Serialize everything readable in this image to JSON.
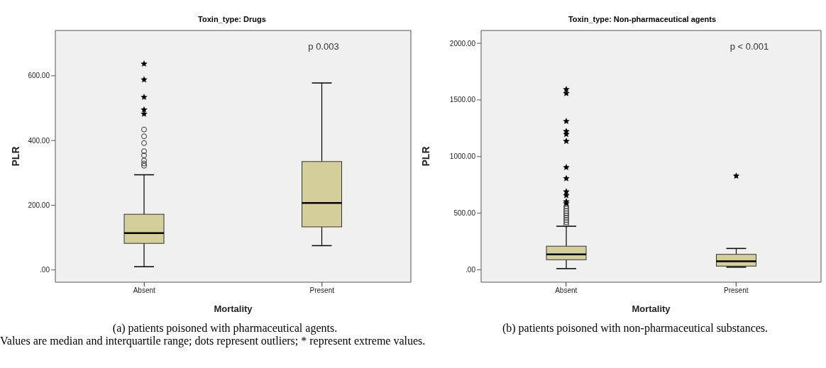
{
  "chart_data": [
    {
      "type": "box",
      "title": "Toxin_type: Drugs",
      "xlabel": "Mortality",
      "ylabel": "PLR",
      "categories": [
        "Absent",
        "Present"
      ],
      "ylim": [
        -38,
        740
      ],
      "yticks": [
        {
          "value": 0,
          "label": ".00"
        },
        {
          "value": 200,
          "label": "200.00"
        },
        {
          "value": 400,
          "label": "400.00"
        },
        {
          "value": 600,
          "label": "600.00"
        }
      ],
      "series": [
        {
          "color": "#d4cf9a",
          "boxes": [
            {
              "low": 10,
              "q1": 82,
              "median": 114,
              "q3": 172,
              "high": 294,
              "outliers": [
                322,
                329,
                338,
                354,
                367,
                392,
                413,
                434
              ]
            },
            {
              "low": 75,
              "q1": 133,
              "median": 207,
              "q3": 335,
              "high": 578
            }
          ]
        },
        {
          "type": "scatter",
          "marker": "star",
          "color": "#000000",
          "x": [
            "Absent",
            "Absent",
            "Absent",
            "Absent",
            "Absent"
          ],
          "values": [
            482,
            495,
            534,
            588,
            637
          ]
        }
      ],
      "annotations": [
        "p 0.003",
        "(a) patients poisoned with pharmaceutical agents.",
        "Values are median and interquartile range; dots represent outliers; * represent extreme values."
      ]
    },
    {
      "type": "box",
      "title": "Toxin_type: Non-pharmaceutical agents",
      "xlabel": "Mortality",
      "ylabel": "PLR",
      "categories": [
        "Absent",
        "Present"
      ],
      "ylim": [
        -109,
        2113
      ],
      "yticks": [
        {
          "value": 0,
          "label": ".00"
        },
        {
          "value": 500,
          "label": "500.00"
        },
        {
          "value": 1000,
          "label": "1000.00"
        },
        {
          "value": 1500,
          "label": "1500.00"
        },
        {
          "value": 2000,
          "label": "2000.00"
        }
      ],
      "series": [
        {
          "color": "#d4cf9a",
          "boxes": [
            {
              "low": 11,
              "q1": 89,
              "median": 137,
              "q3": 209,
              "high": 385,
              "outliers": [
                400,
                420,
                440,
                460,
                480,
                500,
                520,
                540,
                560
              ]
            },
            {
              "low": 24,
              "q1": 33,
              "median": 76,
              "q3": 137,
              "high": 189
            }
          ]
        },
        {
          "type": "scatter",
          "marker": "star",
          "color": "#000000",
          "x": [
            "Absent",
            "Absent",
            "Absent",
            "Absent",
            "Absent",
            "Absent",
            "Absent",
            "Absent",
            "Absent",
            "Absent",
            "Absent",
            "Absent",
            "Present"
          ],
          "values": [
            585,
            603,
            657,
            690,
            807,
            905,
            1136,
            1197,
            1223,
            1312,
            1558,
            1593,
            829
          ]
        }
      ],
      "annotations": [
        "p < 0.001",
        "(b) patients poisoned with non-pharmaceutical substances."
      ]
    }
  ]
}
